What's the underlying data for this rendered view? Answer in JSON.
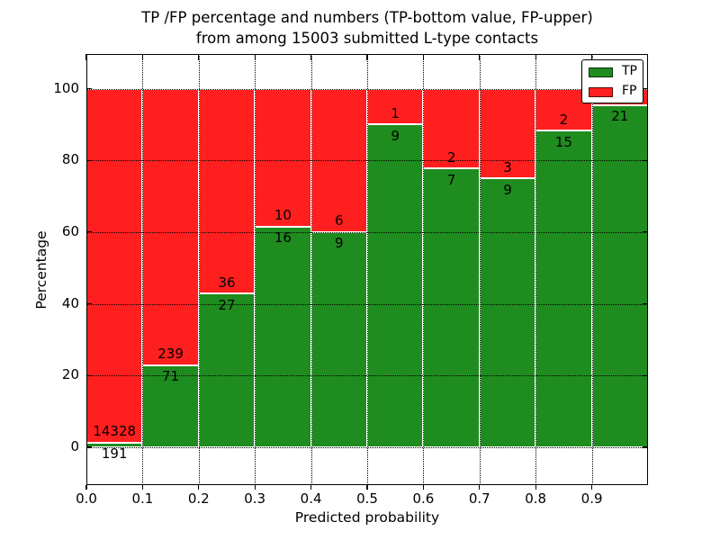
{
  "figure": {
    "title_line1": "TP /FP percentage and numbers (TP-bottom value, FP-upper)",
    "title_line2": "from among 15003 submitted L-type contacts"
  },
  "axes": {
    "xlabel": "Predicted probability",
    "ylabel": "Percentage",
    "x_tick_labels": [
      "0.0",
      "0.1",
      "0.2",
      "0.3",
      "0.4",
      "0.5",
      "0.6",
      "0.7",
      "0.8",
      "0.9"
    ],
    "y_tick_labels": [
      "0",
      "20",
      "40",
      "60",
      "80",
      "100"
    ]
  },
  "legend": {
    "position": "upper right",
    "items": [
      {
        "label": "TP",
        "color": "#1f8c1f"
      },
      {
        "label": "FP",
        "color": "#ff1f1f"
      }
    ]
  },
  "chart_data": {
    "type": "bar",
    "stacked": true,
    "normalized_to_percent": true,
    "title": "TP /FP percentage and numbers (TP-bottom value, FP-upper) from among 15003 submitted L-type contacts",
    "xlabel": "Predicted probability",
    "ylabel": "Percentage",
    "total_submitted": 15003,
    "xlim": [
      0.0,
      1.0
    ],
    "ylim": [
      -10.5,
      109.7
    ],
    "x_ticks": [
      0.0,
      0.1,
      0.2,
      0.3,
      0.4,
      0.5,
      0.6,
      0.7,
      0.8,
      0.9
    ],
    "y_ticks": [
      0,
      20,
      40,
      60,
      80,
      100
    ],
    "grid": true,
    "grid_style": "dotted",
    "colors": {
      "tp": "#1f8c1f",
      "fp": "#ff1f1f",
      "bar_edge": "#ffffff"
    },
    "bins": [
      {
        "range": [
          0.0,
          0.1
        ],
        "tp": 191,
        "fp": 14328,
        "tp_pct": 1.3,
        "tp_label": "191",
        "fp_label": "14328",
        "fp_label_visible": true
      },
      {
        "range": [
          0.1,
          0.2
        ],
        "tp": 71,
        "fp": 239,
        "tp_pct": 22.9,
        "tp_label": "71",
        "fp_label": "239",
        "fp_label_visible": true
      },
      {
        "range": [
          0.2,
          0.3
        ],
        "tp": 27,
        "fp": 36,
        "tp_pct": 42.9,
        "tp_label": "27",
        "fp_label": "36",
        "fp_label_visible": true
      },
      {
        "range": [
          0.3,
          0.4
        ],
        "tp": 16,
        "fp": 10,
        "tp_pct": 61.5,
        "tp_label": "16",
        "fp_label": "10",
        "fp_label_visible": true
      },
      {
        "range": [
          0.4,
          0.5
        ],
        "tp": 9,
        "fp": 6,
        "tp_pct": 60.0,
        "tp_label": "9",
        "fp_label": "6",
        "fp_label_visible": true
      },
      {
        "range": [
          0.5,
          0.6
        ],
        "tp": 9,
        "fp": 1,
        "tp_pct": 90.0,
        "tp_label": "9",
        "fp_label": "1",
        "fp_label_visible": true
      },
      {
        "range": [
          0.6,
          0.7
        ],
        "tp": 7,
        "fp": 2,
        "tp_pct": 77.8,
        "tp_label": "7",
        "fp_label": "2",
        "fp_label_visible": true
      },
      {
        "range": [
          0.7,
          0.8
        ],
        "tp": 9,
        "fp": 3,
        "tp_pct": 75.0,
        "tp_label": "9",
        "fp_label": "3",
        "fp_label_visible": true
      },
      {
        "range": [
          0.8,
          0.9
        ],
        "tp": 15,
        "fp": 2,
        "tp_pct": 88.2,
        "tp_label": "15",
        "fp_label": "2",
        "fp_label_visible": true
      },
      {
        "range": [
          0.9,
          1.0
        ],
        "tp": 21,
        "fp": 1,
        "tp_pct": 95.5,
        "tp_label": "21",
        "fp_label": null,
        "fp_label_visible": false
      }
    ]
  }
}
